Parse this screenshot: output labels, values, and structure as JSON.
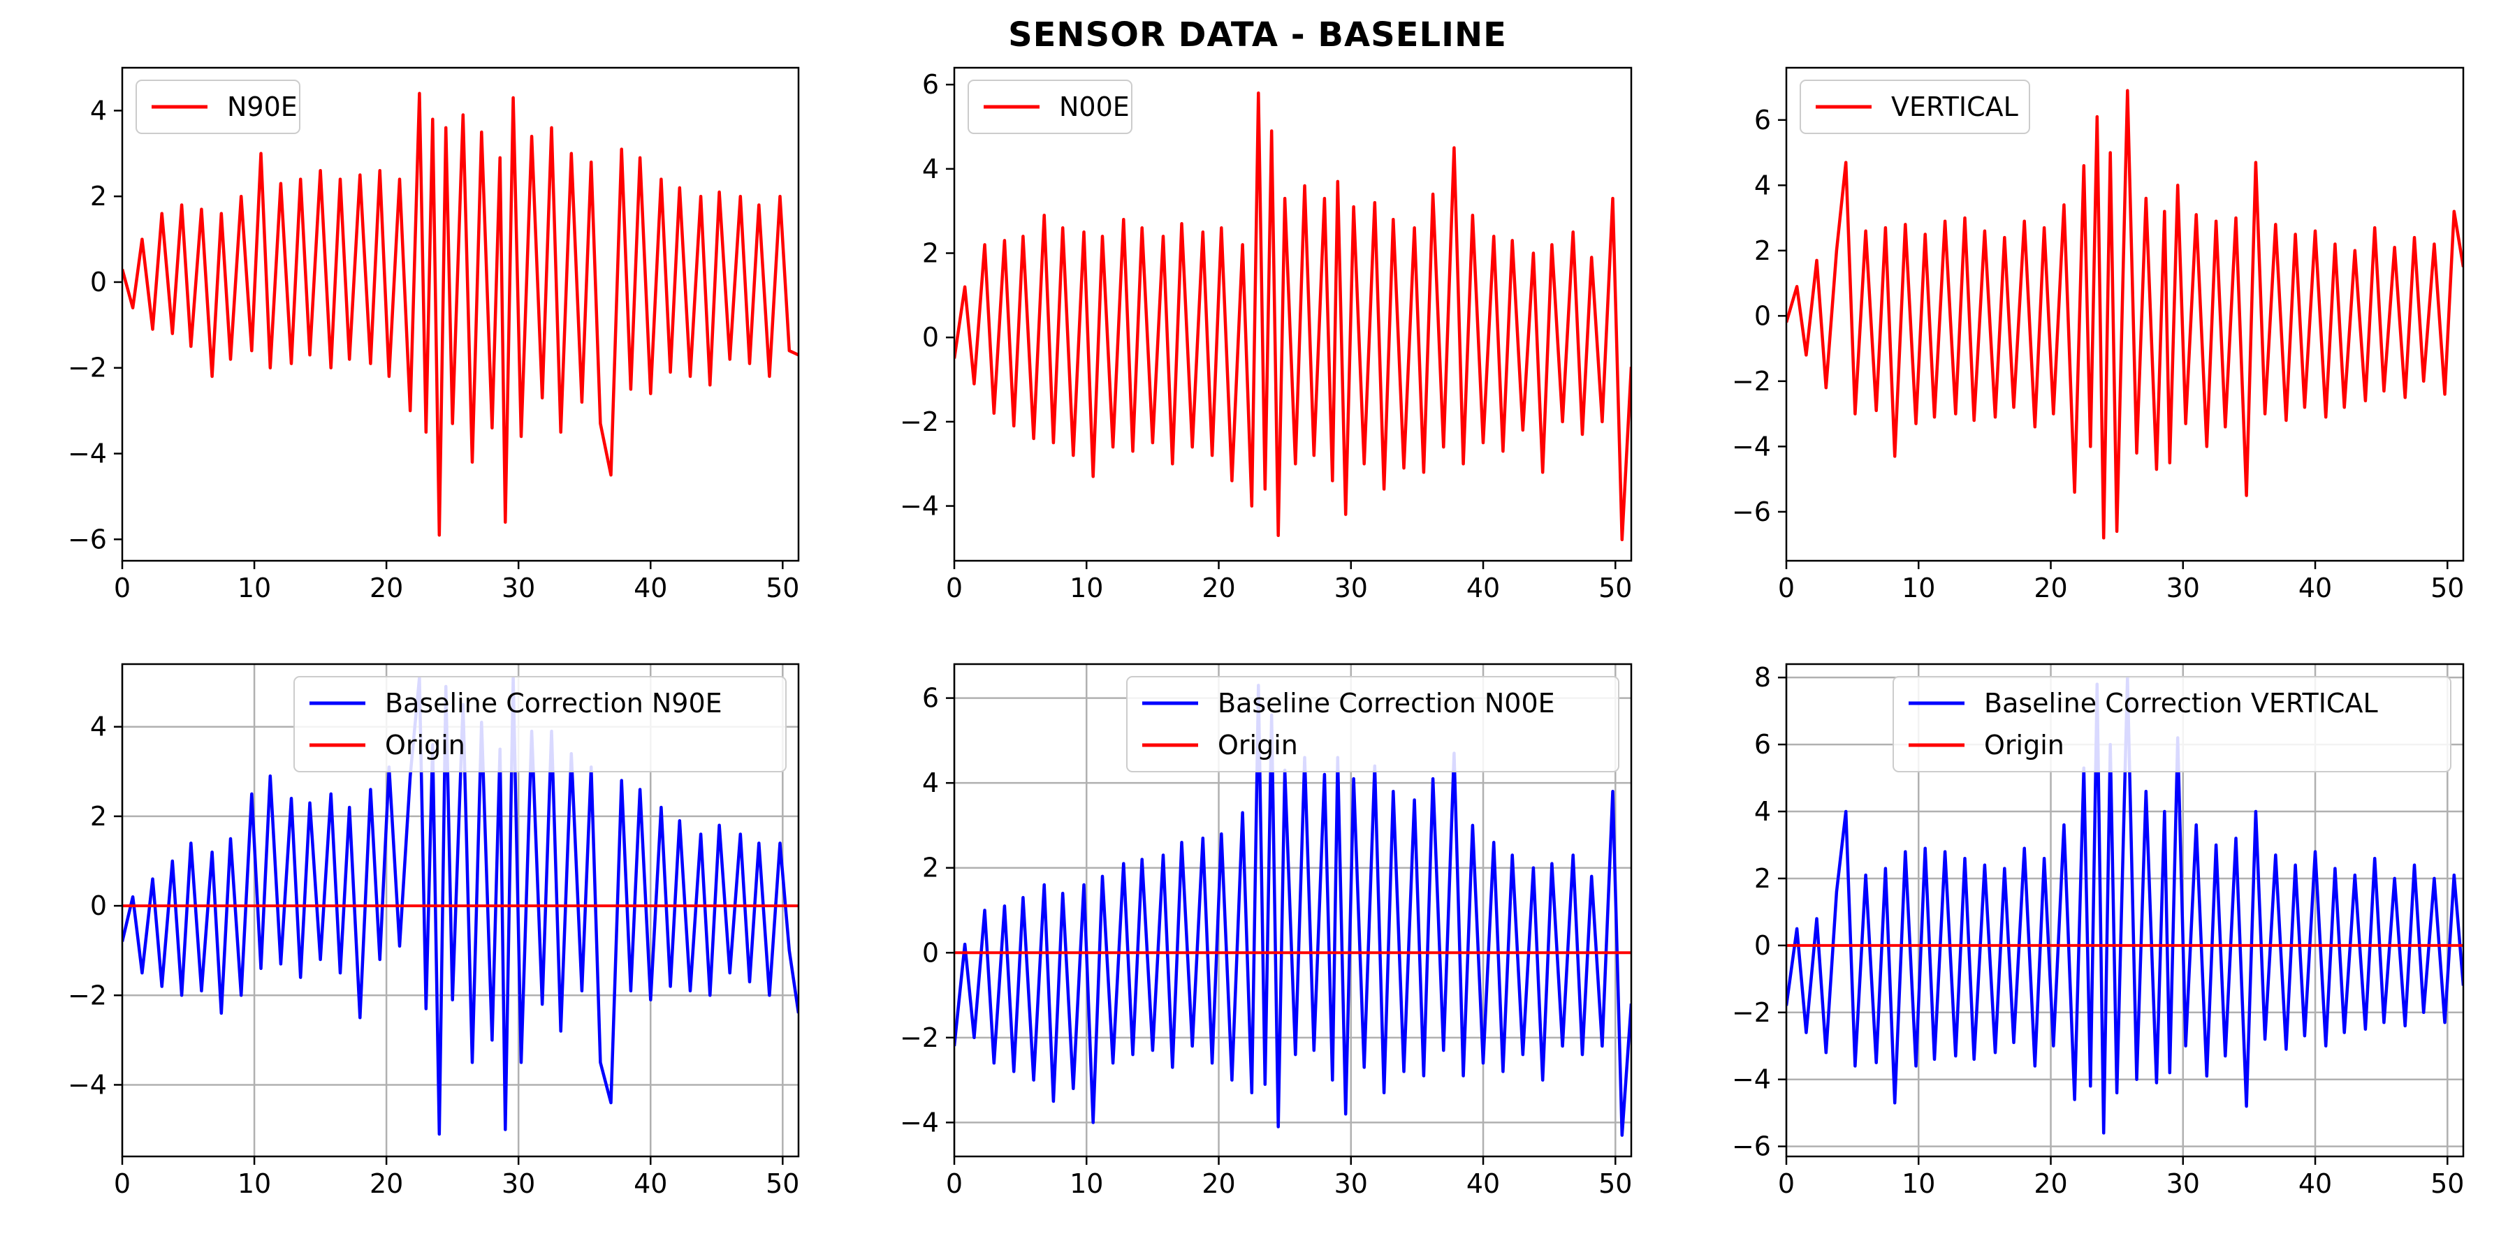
{
  "figure": {
    "suptitle": "SENSOR DATA - BASELINE"
  },
  "chart_data": [
    {
      "id": "raw-n90e",
      "type": "line",
      "xlim": [
        0,
        51.2
      ],
      "ylim": [
        -6.5,
        5.0
      ],
      "xticks": [
        0,
        10,
        20,
        30,
        40,
        50
      ],
      "yticks": [
        -6,
        -4,
        -2,
        0,
        2,
        4
      ],
      "grid": false,
      "legend_placement": "upper-left",
      "series": [
        {
          "name": "N90E",
          "color": "#ff0000",
          "x": [
            0,
            0.8,
            1.5,
            2.3,
            3.0,
            3.8,
            4.5,
            5.2,
            6.0,
            6.8,
            7.5,
            8.2,
            9.0,
            9.8,
            10.5,
            11.2,
            12.0,
            12.8,
            13.5,
            14.2,
            15.0,
            15.8,
            16.5,
            17.2,
            18.0,
            18.8,
            19.5,
            20.2,
            21.0,
            21.8,
            22.5,
            23.0,
            23.5,
            24.0,
            24.5,
            25.0,
            25.8,
            26.5,
            27.2,
            28.0,
            28.6,
            29.0,
            29.6,
            30.2,
            31.0,
            31.8,
            32.5,
            33.2,
            34.0,
            34.8,
            35.5,
            36.2,
            37.0,
            37.8,
            38.5,
            39.2,
            40.0,
            40.8,
            41.5,
            42.2,
            43.0,
            43.8,
            44.5,
            45.2,
            46.0,
            46.8,
            47.5,
            48.2,
            49.0,
            49.8,
            50.5,
            51.2
          ],
          "y": [
            0.3,
            -0.6,
            1.0,
            -1.1,
            1.6,
            -1.2,
            1.8,
            -1.5,
            1.7,
            -2.2,
            1.6,
            -1.8,
            2.0,
            -1.6,
            3.0,
            -2.0,
            2.3,
            -1.9,
            2.4,
            -1.7,
            2.6,
            -2.0,
            2.4,
            -1.8,
            2.5,
            -1.9,
            2.6,
            -2.2,
            2.4,
            -3.0,
            4.4,
            -3.5,
            3.8,
            -5.9,
            3.6,
            -3.3,
            3.9,
            -4.2,
            3.5,
            -3.4,
            2.9,
            -5.6,
            4.3,
            -3.6,
            3.4,
            -2.7,
            3.6,
            -3.5,
            3.0,
            -2.8,
            2.8,
            -3.3,
            -4.5,
            3.1,
            -2.5,
            2.9,
            -2.6,
            2.4,
            -2.1,
            2.2,
            -2.2,
            2.0,
            -2.4,
            2.1,
            -1.8,
            2.0,
            -1.9,
            1.8,
            -2.2,
            2.0,
            -1.6,
            -1.7
          ]
        }
      ]
    },
    {
      "id": "raw-n00e",
      "type": "line",
      "xlim": [
        0,
        51.2
      ],
      "ylim": [
        -5.3,
        6.4
      ],
      "xticks": [
        0,
        10,
        20,
        30,
        40,
        50
      ],
      "yticks": [
        -4,
        -2,
        0,
        2,
        4,
        6
      ],
      "grid": false,
      "legend_placement": "upper-left",
      "series": [
        {
          "name": "N00E",
          "color": "#ff0000",
          "x": [
            0,
            0.8,
            1.5,
            2.3,
            3.0,
            3.8,
            4.5,
            5.2,
            6.0,
            6.8,
            7.5,
            8.2,
            9.0,
            9.8,
            10.5,
            11.2,
            12.0,
            12.8,
            13.5,
            14.2,
            15.0,
            15.8,
            16.5,
            17.2,
            18.0,
            18.8,
            19.5,
            20.2,
            21.0,
            21.8,
            22.5,
            23.0,
            23.5,
            24.0,
            24.5,
            25.0,
            25.8,
            26.5,
            27.2,
            28.0,
            28.6,
            29.0,
            29.6,
            30.2,
            31.0,
            31.8,
            32.5,
            33.2,
            34.0,
            34.8,
            35.5,
            36.2,
            37.0,
            37.8,
            38.5,
            39.2,
            40.0,
            40.8,
            41.5,
            42.2,
            43.0,
            43.8,
            44.5,
            45.2,
            46.0,
            46.8,
            47.5,
            48.2,
            49.0,
            49.8,
            50.5,
            51.2
          ],
          "y": [
            -0.5,
            1.2,
            -1.1,
            2.2,
            -1.8,
            2.3,
            -2.1,
            2.4,
            -2.4,
            2.9,
            -2.5,
            2.6,
            -2.8,
            2.5,
            -3.3,
            2.4,
            -2.6,
            2.8,
            -2.7,
            2.6,
            -2.5,
            2.4,
            -3.0,
            2.7,
            -2.6,
            2.5,
            -2.8,
            2.6,
            -3.4,
            2.2,
            -4.0,
            5.8,
            -3.6,
            4.9,
            -4.7,
            3.3,
            -3.0,
            3.6,
            -2.8,
            3.3,
            -3.4,
            3.7,
            -4.2,
            3.1,
            -3.0,
            3.2,
            -3.6,
            2.8,
            -3.1,
            2.6,
            -3.2,
            3.4,
            -2.6,
            4.5,
            -3.0,
            2.9,
            -2.5,
            2.4,
            -2.7,
            2.3,
            -2.2,
            2.0,
            -3.2,
            2.2,
            -2.0,
            2.5,
            -2.3,
            1.9,
            -2.0,
            3.3,
            -4.8,
            -0.7
          ]
        }
      ]
    },
    {
      "id": "raw-vertical",
      "type": "line",
      "xlim": [
        0,
        51.2
      ],
      "ylim": [
        -7.5,
        7.6
      ],
      "xticks": [
        0,
        10,
        20,
        30,
        40,
        50
      ],
      "yticks": [
        -6,
        -4,
        -2,
        0,
        2,
        4,
        6
      ],
      "grid": false,
      "legend_placement": "upper-left",
      "series": [
        {
          "name": "VERTICAL",
          "color": "#ff0000",
          "x": [
            0,
            0.8,
            1.5,
            2.3,
            3.0,
            3.8,
            4.5,
            5.2,
            6.0,
            6.8,
            7.5,
            8.2,
            9.0,
            9.8,
            10.5,
            11.2,
            12.0,
            12.8,
            13.5,
            14.2,
            15.0,
            15.8,
            16.5,
            17.2,
            18.0,
            18.8,
            19.5,
            20.2,
            21.0,
            21.8,
            22.5,
            23.0,
            23.5,
            24.0,
            24.5,
            25.0,
            25.8,
            26.5,
            27.2,
            28.0,
            28.6,
            29.0,
            29.6,
            30.2,
            31.0,
            31.8,
            32.5,
            33.2,
            34.0,
            34.8,
            35.5,
            36.2,
            37.0,
            37.8,
            38.5,
            39.2,
            40.0,
            40.8,
            41.5,
            42.2,
            43.0,
            43.8,
            44.5,
            45.2,
            46.0,
            46.8,
            47.5,
            48.2,
            49.0,
            49.8,
            50.5,
            51.2
          ],
          "y": [
            -0.2,
            0.9,
            -1.2,
            1.7,
            -2.2,
            2.0,
            4.7,
            -3.0,
            2.6,
            -2.9,
            2.7,
            -4.3,
            2.8,
            -3.3,
            2.5,
            -3.1,
            2.9,
            -3.0,
            3.0,
            -3.2,
            2.6,
            -3.1,
            2.4,
            -2.8,
            2.9,
            -3.4,
            2.7,
            -3.0,
            3.4,
            -5.4,
            4.6,
            -4.0,
            6.1,
            -6.8,
            5.0,
            -6.6,
            6.9,
            -4.2,
            3.6,
            -4.7,
            3.2,
            -4.5,
            4.0,
            -3.3,
            3.1,
            -4.0,
            2.9,
            -3.4,
            3.0,
            -5.5,
            4.7,
            -3.0,
            2.8,
            -3.2,
            2.5,
            -2.8,
            2.6,
            -3.1,
            2.2,
            -2.8,
            2.0,
            -2.6,
            2.7,
            -2.3,
            2.1,
            -2.5,
            2.4,
            -2.0,
            2.2,
            -2.4,
            3.2,
            1.5
          ]
        }
      ]
    },
    {
      "id": "bc-n90e",
      "type": "line",
      "xlim": [
        0,
        51.2
      ],
      "ylim": [
        -5.6,
        5.4
      ],
      "xticks": [
        0,
        10,
        20,
        30,
        40,
        50
      ],
      "yticks": [
        -4,
        -2,
        0,
        2,
        4
      ],
      "grid": true,
      "legend_placement": "upper-right",
      "series": [
        {
          "name": "Baseline Correction N90E",
          "color": "#0000ff",
          "x": [
            0,
            0.8,
            1.5,
            2.3,
            3.0,
            3.8,
            4.5,
            5.2,
            6.0,
            6.8,
            7.5,
            8.2,
            9.0,
            9.8,
            10.5,
            11.2,
            12.0,
            12.8,
            13.5,
            14.2,
            15.0,
            15.8,
            16.5,
            17.2,
            18.0,
            18.8,
            19.5,
            20.2,
            21.0,
            21.8,
            22.5,
            23.0,
            23.5,
            24.0,
            24.5,
            25.0,
            25.8,
            26.5,
            27.2,
            28.0,
            28.6,
            29.0,
            29.6,
            30.2,
            31.0,
            31.8,
            32.5,
            33.2,
            34.0,
            34.8,
            35.5,
            36.2,
            37.0,
            37.8,
            38.5,
            39.2,
            40.0,
            40.8,
            41.5,
            42.2,
            43.0,
            43.8,
            44.5,
            45.2,
            46.0,
            46.8,
            47.5,
            48.2,
            49.0,
            49.8,
            50.5,
            51.2
          ],
          "y": [
            -0.8,
            0.2,
            -1.5,
            0.6,
            -1.8,
            1.0,
            -2.0,
            1.4,
            -1.9,
            1.2,
            -2.4,
            1.5,
            -2.0,
            2.5,
            -1.4,
            2.9,
            -1.3,
            2.4,
            -1.6,
            2.3,
            -1.2,
            2.5,
            -1.5,
            2.2,
            -2.5,
            2.6,
            -1.2,
            3.1,
            -0.9,
            2.9,
            5.1,
            -2.3,
            3.6,
            -5.1,
            4.9,
            -2.1,
            4.5,
            -3.5,
            4.1,
            -3.0,
            3.5,
            -5.0,
            5.1,
            -3.5,
            3.9,
            -2.2,
            3.9,
            -2.8,
            3.4,
            -1.9,
            3.1,
            -3.5,
            -4.4,
            2.8,
            -1.9,
            2.6,
            -2.1,
            2.2,
            -1.8,
            1.9,
            -1.9,
            1.6,
            -2.0,
            1.8,
            -1.5,
            1.6,
            -1.7,
            1.4,
            -2.0,
            1.4,
            -1.0,
            -2.4
          ]
        },
        {
          "name": "Origin",
          "color": "#ff0000",
          "x": [
            0,
            51.2
          ],
          "y": [
            0,
            0
          ]
        }
      ]
    },
    {
      "id": "bc-n00e",
      "type": "line",
      "xlim": [
        0,
        51.2
      ],
      "ylim": [
        -4.8,
        6.8
      ],
      "xticks": [
        0,
        10,
        20,
        30,
        40,
        50
      ],
      "yticks": [
        -4,
        -2,
        0,
        2,
        4,
        6
      ],
      "grid": true,
      "legend_placement": "upper-right",
      "series": [
        {
          "name": "Baseline Correction N00E",
          "color": "#0000ff",
          "x": [
            0,
            0.8,
            1.5,
            2.3,
            3.0,
            3.8,
            4.5,
            5.2,
            6.0,
            6.8,
            7.5,
            8.2,
            9.0,
            9.8,
            10.5,
            11.2,
            12.0,
            12.8,
            13.5,
            14.2,
            15.0,
            15.8,
            16.5,
            17.2,
            18.0,
            18.8,
            19.5,
            20.2,
            21.0,
            21.8,
            22.5,
            23.0,
            23.5,
            24.0,
            24.5,
            25.0,
            25.8,
            26.5,
            27.2,
            28.0,
            28.6,
            29.0,
            29.6,
            30.2,
            31.0,
            31.8,
            32.5,
            33.2,
            34.0,
            34.8,
            35.5,
            36.2,
            37.0,
            37.8,
            38.5,
            39.2,
            40.0,
            40.8,
            41.5,
            42.2,
            43.0,
            43.8,
            44.5,
            45.2,
            46.0,
            46.8,
            47.5,
            48.2,
            49.0,
            49.8,
            50.5,
            51.2
          ],
          "y": [
            -2.2,
            0.2,
            -2.0,
            1.0,
            -2.6,
            1.1,
            -2.8,
            1.3,
            -3.0,
            1.6,
            -3.5,
            1.4,
            -3.2,
            1.6,
            -4.0,
            1.8,
            -2.6,
            2.1,
            -2.4,
            2.2,
            -2.3,
            2.3,
            -2.7,
            2.6,
            -2.2,
            2.7,
            -2.6,
            2.8,
            -3.0,
            3.3,
            -3.3,
            6.3,
            -3.1,
            5.6,
            -4.1,
            4.3,
            -2.4,
            4.6,
            -2.3,
            4.2,
            -3.0,
            4.6,
            -3.8,
            4.1,
            -2.7,
            4.4,
            -3.3,
            3.8,
            -2.8,
            3.6,
            -2.9,
            4.1,
            -2.3,
            4.7,
            -2.9,
            3.0,
            -2.6,
            2.6,
            -2.8,
            2.3,
            -2.4,
            2.0,
            -3.0,
            2.1,
            -2.2,
            2.3,
            -2.4,
            1.8,
            -2.2,
            3.8,
            -4.3,
            -1.2
          ]
        },
        {
          "name": "Origin",
          "color": "#ff0000",
          "x": [
            0,
            51.2
          ],
          "y": [
            0,
            0
          ]
        }
      ]
    },
    {
      "id": "bc-vertical",
      "type": "line",
      "xlim": [
        0,
        51.2
      ],
      "ylim": [
        -6.3,
        8.4
      ],
      "xticks": [
        0,
        10,
        20,
        30,
        40,
        50
      ],
      "yticks": [
        -6,
        -4,
        -2,
        0,
        2,
        4,
        6,
        8
      ],
      "grid": true,
      "legend_placement": "upper-right",
      "series": [
        {
          "name": "Baseline Correction VERTICAL",
          "color": "#0000ff",
          "x": [
            0,
            0.8,
            1.5,
            2.3,
            3.0,
            3.8,
            4.5,
            5.2,
            6.0,
            6.8,
            7.5,
            8.2,
            9.0,
            9.8,
            10.5,
            11.2,
            12.0,
            12.8,
            13.5,
            14.2,
            15.0,
            15.8,
            16.5,
            17.2,
            18.0,
            18.8,
            19.5,
            20.2,
            21.0,
            21.8,
            22.5,
            23.0,
            23.5,
            24.0,
            24.5,
            25.0,
            25.8,
            26.5,
            27.2,
            28.0,
            28.6,
            29.0,
            29.6,
            30.2,
            31.0,
            31.8,
            32.5,
            33.2,
            34.0,
            34.8,
            35.5,
            36.2,
            37.0,
            37.8,
            38.5,
            39.2,
            40.0,
            40.8,
            41.5,
            42.2,
            43.0,
            43.8,
            44.5,
            45.2,
            46.0,
            46.8,
            47.5,
            48.2,
            49.0,
            49.8,
            50.5,
            51.2
          ],
          "y": [
            -1.8,
            0.5,
            -2.6,
            0.8,
            -3.2,
            1.6,
            4.0,
            -3.6,
            2.1,
            -3.5,
            2.3,
            -4.7,
            2.8,
            -3.6,
            2.9,
            -3.4,
            2.8,
            -3.3,
            2.6,
            -3.4,
            2.4,
            -3.2,
            2.3,
            -2.9,
            2.9,
            -3.6,
            2.6,
            -3.0,
            3.6,
            -4.6,
            5.3,
            -4.2,
            7.8,
            -5.6,
            6.0,
            -4.4,
            8.0,
            -4.0,
            4.6,
            -4.1,
            4.0,
            -3.8,
            6.2,
            -3.0,
            3.6,
            -3.9,
            3.0,
            -3.3,
            3.2,
            -4.8,
            4.0,
            -2.8,
            2.7,
            -3.1,
            2.4,
            -2.7,
            2.8,
            -3.0,
            2.3,
            -2.6,
            2.1,
            -2.5,
            2.6,
            -2.3,
            2.0,
            -2.4,
            2.4,
            -2.0,
            2.0,
            -2.3,
            2.1,
            -1.2
          ]
        },
        {
          "name": "Origin",
          "color": "#ff0000",
          "x": [
            0,
            51.2
          ],
          "y": [
            0,
            0
          ]
        }
      ]
    }
  ]
}
